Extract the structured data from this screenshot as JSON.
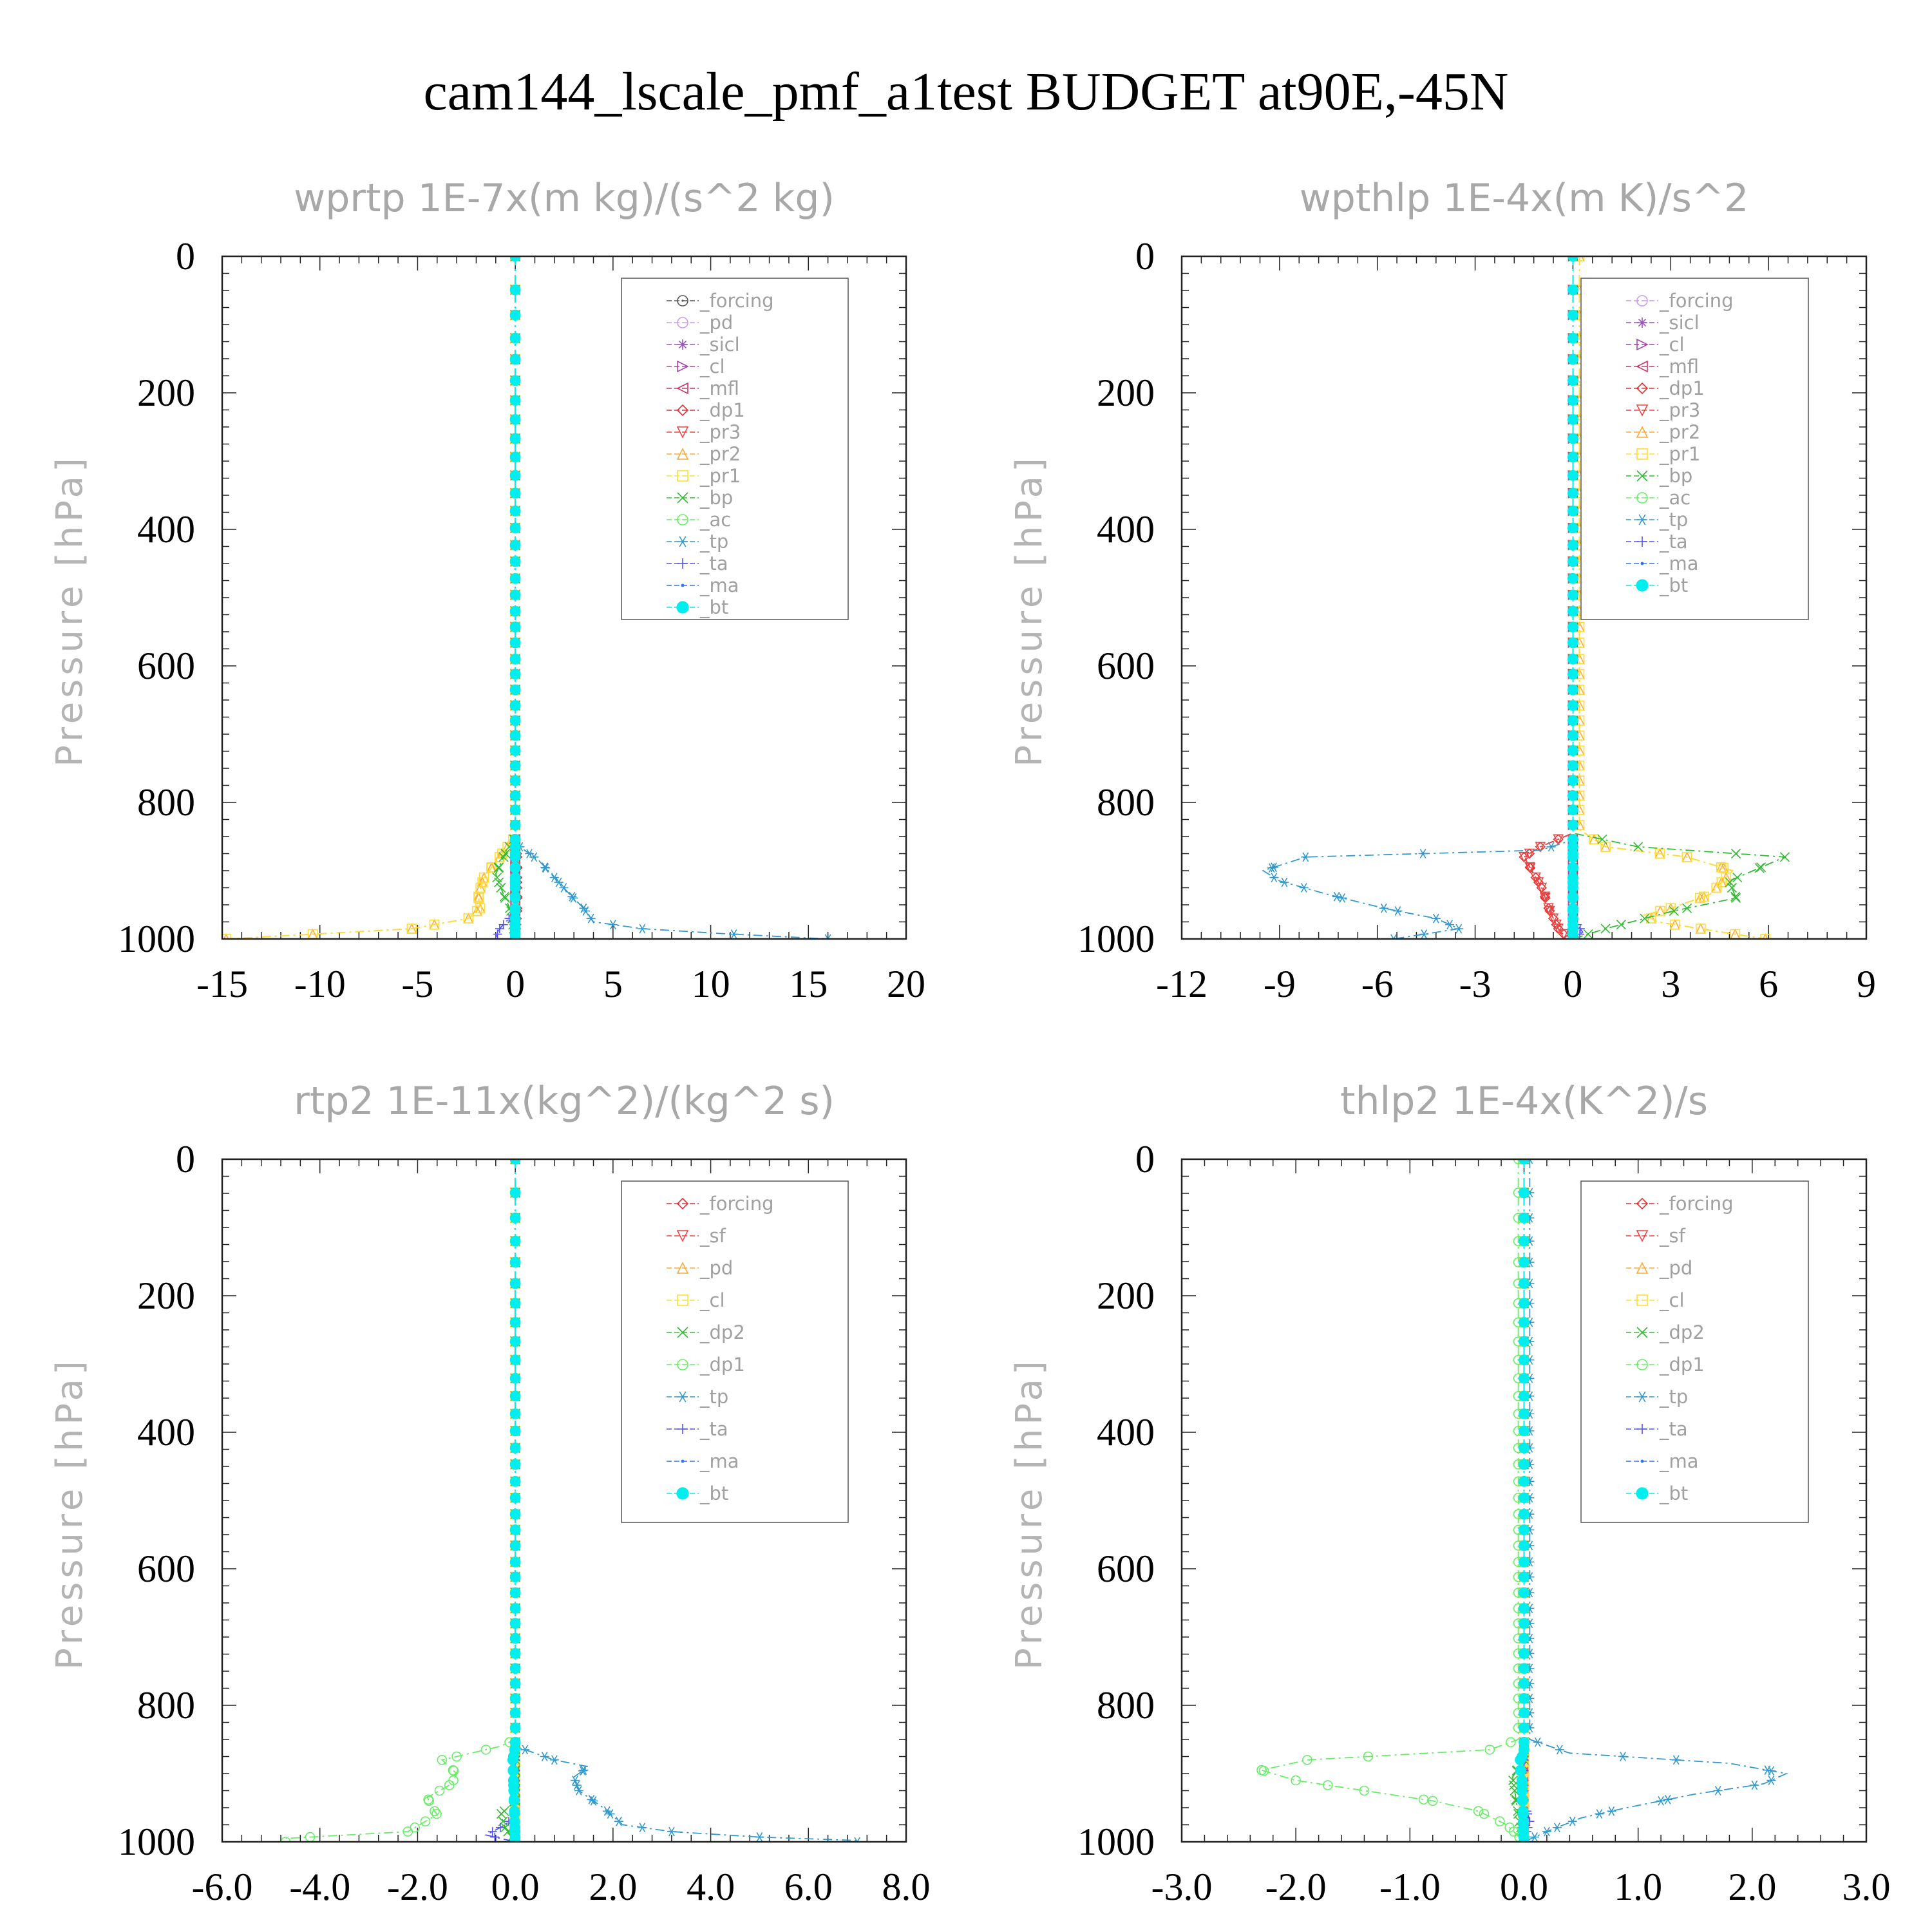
{
  "suptitle": "cam144_lscale_pmf_a1test  BUDGET at90E,-45N",
  "chart_data": [
    {
      "type": "line",
      "title": "wprtp   1E-7x(m kg)/(s^2 kg)",
      "ylabel": "Pressure [hPa]",
      "xlim": [
        -15,
        20
      ],
      "ylim": [
        1000,
        0
      ],
      "xticks": [
        "-15",
        "-10",
        "-5",
        "0",
        "5",
        "10",
        "15",
        "20"
      ],
      "xtick_values": [
        -15,
        -10,
        -5,
        0,
        5,
        10,
        15,
        20
      ],
      "yticks": [
        "0",
        "200",
        "400",
        "600",
        "800",
        "1000"
      ],
      "ytick_values": [
        0,
        200,
        400,
        600,
        800,
        1000
      ],
      "legend_position": "top-right",
      "series": [
        {
          "name": "_forcing",
          "color": "#555555",
          "marker": "circledot",
          "x": [
            0,
            0
          ],
          "y": [
            0,
            1000
          ]
        },
        {
          "name": "_pd",
          "color": "#cc99ee",
          "marker": "circle",
          "x": [
            0,
            0
          ],
          "y": [
            0,
            1000
          ]
        },
        {
          "name": "_sicl",
          "color": "#9955bb",
          "marker": "star",
          "x": [
            0,
            0
          ],
          "y": [
            0,
            1000
          ]
        },
        {
          "name": "_cl",
          "color": "#aa44aa",
          "marker": "tri-right",
          "x": [
            0,
            0
          ],
          "y": [
            0,
            1000
          ]
        },
        {
          "name": "_mfl",
          "color": "#cc3366",
          "marker": "tri-left",
          "x": [
            0,
            0
          ],
          "y": [
            0,
            1000
          ]
        },
        {
          "name": "_dp1",
          "color": "#dd3333",
          "marker": "diamond",
          "x": [
            0,
            0,
            0.1,
            0.1,
            0.1,
            0
          ],
          "y": [
            0,
            850,
            880,
            920,
            960,
            1000
          ]
        },
        {
          "name": "_pr3",
          "color": "#ee4444",
          "marker": "tri-down",
          "x": [
            0,
            0
          ],
          "y": [
            0,
            1000
          ]
        },
        {
          "name": "_pr2",
          "color": "#ffaa33",
          "marker": "tri-up",
          "x": [
            0,
            0,
            -0.8,
            -1.6,
            -1.9,
            -1.8,
            -2.4,
            -5.3,
            -14.8
          ],
          "y": [
            0,
            850,
            880,
            910,
            935,
            955,
            970,
            985,
            1000
          ]
        },
        {
          "name": "_pr1",
          "color": "#ffdd33",
          "marker": "square",
          "x": [
            0,
            0,
            -0.8,
            -1.6,
            -1.9,
            -1.8,
            -2.4,
            -5.3,
            -14.8
          ],
          "y": [
            0,
            850,
            880,
            910,
            935,
            955,
            970,
            985,
            1000
          ]
        },
        {
          "name": "_bp",
          "color": "#33bb33",
          "marker": "x",
          "x": [
            0,
            0,
            -0.6,
            -1.0,
            -0.6,
            -0.2,
            0
          ],
          "y": [
            0,
            850,
            880,
            905,
            935,
            960,
            1000
          ]
        },
        {
          "name": "_ac",
          "color": "#66ee66",
          "marker": "circle",
          "x": [
            0,
            0
          ],
          "y": [
            0,
            1000
          ]
        },
        {
          "name": "_tp",
          "color": "#3399cc",
          "marker": "asterisk",
          "x": [
            0,
            0,
            1.2,
            2.0,
            2.8,
            3.5,
            4.0,
            6.5,
            10.5,
            16.0
          ],
          "y": [
            0,
            860,
            885,
            910,
            935,
            955,
            975,
            985,
            992,
            1000
          ]
        },
        {
          "name": "_ta",
          "color": "#5555ee",
          "marker": "plus",
          "x": [
            0,
            0,
            -0.8,
            -1.0
          ],
          "y": [
            0,
            960,
            985,
            1000
          ]
        },
        {
          "name": "_ma",
          "color": "#3377ee",
          "marker": "dot",
          "x": [
            0,
            0
          ],
          "y": [
            0,
            1000
          ]
        },
        {
          "name": "_bt",
          "color": "#00eeee",
          "marker": "bigdot",
          "x": [
            0,
            0
          ],
          "y": [
            0,
            1000
          ]
        }
      ]
    },
    {
      "type": "line",
      "title": "wpthlp   1E-4x(m K)/s^2",
      "ylabel": "Pressure [hPa]",
      "xlim": [
        -12,
        9
      ],
      "ylim": [
        1000,
        0
      ],
      "xticks": [
        "-12",
        "-9",
        "-6",
        "-3",
        "0",
        "3",
        "6",
        "9"
      ],
      "xtick_values": [
        -12,
        -9,
        -6,
        -3,
        0,
        3,
        6,
        9
      ],
      "yticks": [
        "0",
        "200",
        "400",
        "600",
        "800",
        "1000"
      ],
      "ytick_values": [
        0,
        200,
        400,
        600,
        800,
        1000
      ],
      "legend_position": "top-right",
      "series": [
        {
          "name": "_forcing",
          "color": "#cc99ee",
          "marker": "circle",
          "x": [
            0,
            0
          ],
          "y": [
            0,
            1000
          ]
        },
        {
          "name": "_sicl",
          "color": "#9955bb",
          "marker": "star",
          "x": [
            0,
            0
          ],
          "y": [
            0,
            1000
          ]
        },
        {
          "name": "_cl",
          "color": "#aa44aa",
          "marker": "tri-right",
          "x": [
            0,
            0
          ],
          "y": [
            0,
            1000
          ]
        },
        {
          "name": "_mfl",
          "color": "#cc3366",
          "marker": "tri-left",
          "x": [
            0,
            0
          ],
          "y": [
            0,
            1000
          ]
        },
        {
          "name": "_dp1",
          "color": "#dd3333",
          "marker": "diamond",
          "x": [
            0,
            0,
            -1.0,
            -1.5,
            -1.2,
            -0.9,
            -0.8,
            -0.6,
            -0.4,
            0
          ],
          "y": [
            0,
            845,
            865,
            880,
            905,
            930,
            950,
            970,
            990,
            1000
          ]
        },
        {
          "name": "_pr3",
          "color": "#ee4444",
          "marker": "tri-down",
          "x": [
            0,
            0,
            -1.0,
            -1.5,
            -1.2,
            -0.9,
            -0.8,
            -0.6,
            -0.4,
            0
          ],
          "y": [
            0,
            845,
            865,
            880,
            905,
            930,
            950,
            970,
            990,
            1000
          ]
        },
        {
          "name": "_pr2",
          "color": "#ffaa33",
          "marker": "tri-up",
          "x": [
            0.2,
            0.2,
            1.0,
            3.5,
            4.9,
            4.2,
            3.0,
            2.2,
            2.6,
            5.9
          ],
          "y": [
            0,
            840,
            865,
            880,
            900,
            935,
            955,
            965,
            975,
            1000
          ]
        },
        {
          "name": "_pr1",
          "color": "#ffdd33",
          "marker": "square",
          "x": [
            0.2,
            0.2,
            1.0,
            3.5,
            4.9,
            4.2,
            3.0,
            2.2,
            2.6,
            5.9
          ],
          "y": [
            0,
            840,
            865,
            880,
            900,
            935,
            955,
            965,
            975,
            1000
          ]
        },
        {
          "name": "_bp",
          "color": "#33bb33",
          "marker": "x",
          "x": [
            0,
            0,
            2.0,
            6.5,
            4.8,
            5.0,
            3.0,
            1.0,
            0
          ],
          "y": [
            0,
            845,
            865,
            880,
            915,
            940,
            960,
            985,
            1000
          ]
        },
        {
          "name": "_ac",
          "color": "#66ee66",
          "marker": "circle",
          "x": [
            0,
            0
          ],
          "y": [
            0,
            1000
          ]
        },
        {
          "name": "_tp",
          "color": "#3399cc",
          "marker": "asterisk",
          "x": [
            0,
            0,
            -1.0,
            -8.2,
            -9.5,
            -9.0,
            -7.5,
            -5.8,
            -4.2,
            -3.5,
            -5.5
          ],
          "y": [
            0,
            855,
            870,
            880,
            900,
            915,
            935,
            955,
            970,
            985,
            1000
          ]
        },
        {
          "name": "_ta",
          "color": "#5555ee",
          "marker": "plus",
          "x": [
            0,
            0,
            0.3,
            0
          ],
          "y": [
            0,
            970,
            990,
            1000
          ]
        },
        {
          "name": "_ma",
          "color": "#3377ee",
          "marker": "dot",
          "x": [
            0,
            0
          ],
          "y": [
            0,
            1000
          ]
        },
        {
          "name": "_bt",
          "color": "#00eeee",
          "marker": "bigdot",
          "x": [
            0,
            0
          ],
          "y": [
            0,
            1000
          ]
        }
      ]
    },
    {
      "type": "line",
      "title": "rtp2   1E-11x(kg^2)/(kg^2 s)",
      "ylabel": "Pressure [hPa]",
      "xlim": [
        -6.0,
        8.0
      ],
      "ylim": [
        1000,
        0
      ],
      "xticks": [
        "-6.0",
        "-4.0",
        "-2.0",
        "0.0",
        "2.0",
        "4.0",
        "6.0",
        "8.0"
      ],
      "xtick_values": [
        -6,
        -4,
        -2,
        0,
        2,
        4,
        6,
        8
      ],
      "yticks": [
        "0",
        "200",
        "400",
        "600",
        "800",
        "1000"
      ],
      "ytick_values": [
        0,
        200,
        400,
        600,
        800,
        1000
      ],
      "legend_position": "top-right",
      "series": [
        {
          "name": "_forcing",
          "color": "#dd3333",
          "marker": "diamond",
          "x": [
            0,
            0
          ],
          "y": [
            0,
            1000
          ]
        },
        {
          "name": "_sf",
          "color": "#ee4444",
          "marker": "tri-down",
          "x": [
            0,
            0
          ],
          "y": [
            0,
            1000
          ]
        },
        {
          "name": "_pd",
          "color": "#ffaa33",
          "marker": "tri-up",
          "x": [
            0,
            0
          ],
          "y": [
            0,
            1000
          ]
        },
        {
          "name": "_cl",
          "color": "#ffdd33",
          "marker": "square",
          "x": [
            0,
            0
          ],
          "y": [
            0,
            1000
          ]
        },
        {
          "name": "_dp2",
          "color": "#33bb33",
          "marker": "x",
          "x": [
            0,
            0,
            -0.3,
            -0.2,
            0
          ],
          "y": [
            0,
            940,
            960,
            980,
            1000
          ]
        },
        {
          "name": "_dp1",
          "color": "#66ee66",
          "marker": "circle",
          "x": [
            0,
            0,
            -0.3,
            -1.5,
            -1.2,
            -1.3,
            -1.8,
            -1.7,
            -1.6,
            -2.2,
            -4.7
          ],
          "y": [
            0,
            850,
            860,
            880,
            900,
            915,
            935,
            950,
            960,
            985,
            995
          ]
        },
        {
          "name": "_tp",
          "color": "#3399cc",
          "marker": "asterisk",
          "x": [
            0,
            0,
            0.8,
            1.5,
            1.2,
            1.3,
            1.8,
            2.2,
            3.2,
            5.0,
            7.0
          ],
          "y": [
            0,
            860,
            880,
            890,
            905,
            925,
            950,
            975,
            985,
            993,
            998
          ]
        },
        {
          "name": "_ta",
          "color": "#5555ee",
          "marker": "plus",
          "x": [
            0,
            0,
            -0.2,
            -0.6,
            0
          ],
          "y": [
            0,
            960,
            975,
            990,
            1000
          ]
        },
        {
          "name": "_ma",
          "color": "#3377ee",
          "marker": "dot",
          "x": [
            0,
            0
          ],
          "y": [
            0,
            1000
          ]
        },
        {
          "name": "_bt",
          "color": "#00eeee",
          "marker": "bigdot",
          "x": [
            0,
            0,
            -0.05,
            0
          ],
          "y": [
            0,
            860,
            880,
            1000
          ]
        }
      ]
    },
    {
      "type": "line",
      "title": "thlp2   1E-4x(K^2)/s",
      "ylabel": "Pressure [hPa]",
      "xlim": [
        -3.0,
        3.0
      ],
      "ylim": [
        1000,
        0
      ],
      "xticks": [
        "-3.0",
        "-2.0",
        "-1.0",
        "0.0",
        "1.0",
        "2.0",
        "3.0"
      ],
      "xtick_values": [
        -3,
        -2,
        -1,
        0,
        1,
        2,
        3
      ],
      "yticks": [
        "0",
        "200",
        "400",
        "600",
        "800",
        "1000"
      ],
      "ytick_values": [
        0,
        200,
        400,
        600,
        800,
        1000
      ],
      "legend_position": "top-right",
      "series": [
        {
          "name": "_forcing",
          "color": "#dd3333",
          "marker": "diamond",
          "x": [
            0,
            0
          ],
          "y": [
            0,
            1000
          ]
        },
        {
          "name": "_sf",
          "color": "#ee4444",
          "marker": "tri-down",
          "x": [
            0,
            0
          ],
          "y": [
            0,
            1000
          ]
        },
        {
          "name": "_pd",
          "color": "#ffaa33",
          "marker": "tri-up",
          "x": [
            0,
            0
          ],
          "y": [
            0,
            1000
          ]
        },
        {
          "name": "_cl",
          "color": "#ffdd33",
          "marker": "square",
          "x": [
            0,
            0
          ],
          "y": [
            0,
            1000
          ]
        },
        {
          "name": "_dp2",
          "color": "#33bb33",
          "marker": "x",
          "x": [
            0,
            0,
            -0.1,
            -0.05,
            0
          ],
          "y": [
            0,
            880,
            905,
            960,
            1000
          ]
        },
        {
          "name": "_dp1",
          "color": "#66ee66",
          "marker": "circle",
          "x": [
            -0.05,
            -0.05,
            -0.3,
            -1.9,
            -2.3,
            -2.0,
            -1.4,
            -0.8,
            -0.4,
            -0.15,
            0
          ],
          "y": [
            0,
            850,
            865,
            880,
            895,
            910,
            925,
            940,
            955,
            975,
            1000
          ]
        },
        {
          "name": "_tp",
          "color": "#3399cc",
          "marker": "asterisk",
          "x": [
            0.05,
            0.05,
            0.4,
            1.8,
            2.3,
            2.1,
            1.5,
            0.9,
            0.5,
            0.2,
            0
          ],
          "y": [
            0,
            850,
            870,
            885,
            900,
            915,
            930,
            950,
            965,
            985,
            1000
          ]
        },
        {
          "name": "_ta",
          "color": "#5555ee",
          "marker": "plus",
          "x": [
            0,
            0,
            0.05,
            0
          ],
          "y": [
            0,
            940,
            970,
            1000
          ]
        },
        {
          "name": "_ma",
          "color": "#3377ee",
          "marker": "dot",
          "x": [
            0,
            0
          ],
          "y": [
            0,
            1000
          ]
        },
        {
          "name": "_bt",
          "color": "#00eeee",
          "marker": "bigdot",
          "x": [
            0,
            0,
            -0.05,
            -0.02,
            0
          ],
          "y": [
            0,
            870,
            885,
            900,
            1000
          ]
        }
      ]
    }
  ]
}
